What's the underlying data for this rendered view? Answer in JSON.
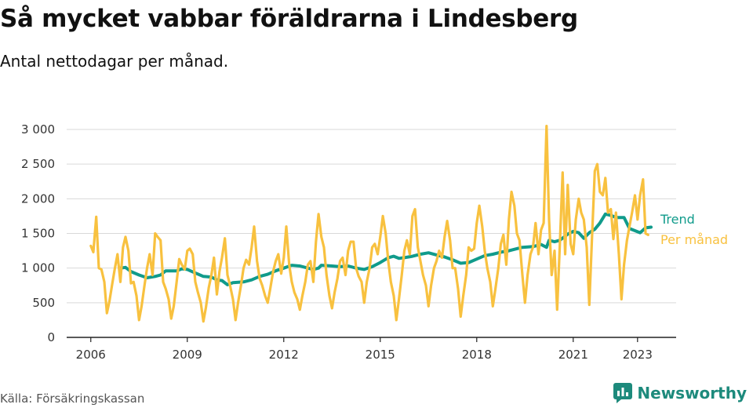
{
  "title": "Så mycket vabbar föräldrarna i Lindesberg",
  "subtitle": "Antal nettodagar per månad.",
  "source": "Källa: Försäkringskassan",
  "brand": "Newsworthy",
  "colors": {
    "trend": "#109b8b",
    "monthly": "#f8c13f",
    "grid": "#d9d9d9",
    "brand": "#1d8a7c"
  },
  "chart_data": {
    "type": "line",
    "title": "Så mycket vabbar föräldrarna i Lindesberg",
    "subtitle": "Antal nettodagar per månad.",
    "xlim": [
      2005.25,
      2024.2
    ],
    "ylim": [
      0,
      3000
    ],
    "yticks": [
      0,
      500,
      1000,
      1500,
      2000,
      2500,
      3000
    ],
    "ytick_labels": [
      "0",
      "500",
      "1 000",
      "1 500",
      "2 000",
      "2 500",
      "3 000"
    ],
    "xticks": [
      2006,
      2009,
      2012,
      2015,
      2018,
      2021,
      2023
    ],
    "xtick_labels": [
      "2006",
      "2009",
      "2012",
      "2015",
      "2018",
      "2021",
      "2023"
    ],
    "grid": true,
    "legend": "end-labels right",
    "series": [
      {
        "name": "Per månad",
        "color": "#f8c13f",
        "points": [
          [
            2006.0,
            1320
          ],
          [
            2006.08,
            1230
          ],
          [
            2006.17,
            1740
          ],
          [
            2006.25,
            1000
          ],
          [
            2006.33,
            980
          ],
          [
            2006.42,
            800
          ],
          [
            2006.5,
            350
          ],
          [
            2006.58,
            520
          ],
          [
            2006.67,
            780
          ],
          [
            2006.75,
            1000
          ],
          [
            2006.83,
            1200
          ],
          [
            2006.92,
            800
          ],
          [
            2007.0,
            1300
          ],
          [
            2007.08,
            1450
          ],
          [
            2007.17,
            1250
          ],
          [
            2007.25,
            780
          ],
          [
            2007.33,
            800
          ],
          [
            2007.42,
            600
          ],
          [
            2007.5,
            250
          ],
          [
            2007.58,
            450
          ],
          [
            2007.67,
            750
          ],
          [
            2007.75,
            1000
          ],
          [
            2007.83,
            1200
          ],
          [
            2007.92,
            900
          ],
          [
            2008.0,
            1500
          ],
          [
            2008.08,
            1450
          ],
          [
            2008.17,
            1400
          ],
          [
            2008.25,
            800
          ],
          [
            2008.33,
            700
          ],
          [
            2008.42,
            550
          ],
          [
            2008.5,
            270
          ],
          [
            2008.58,
            450
          ],
          [
            2008.67,
            800
          ],
          [
            2008.75,
            1130
          ],
          [
            2008.83,
            1050
          ],
          [
            2008.92,
            980
          ],
          [
            2009.0,
            1250
          ],
          [
            2009.08,
            1280
          ],
          [
            2009.17,
            1200
          ],
          [
            2009.25,
            800
          ],
          [
            2009.33,
            650
          ],
          [
            2009.42,
            500
          ],
          [
            2009.5,
            230
          ],
          [
            2009.58,
            430
          ],
          [
            2009.67,
            720
          ],
          [
            2009.75,
            900
          ],
          [
            2009.83,
            1150
          ],
          [
            2009.92,
            620
          ],
          [
            2010.0,
            950
          ],
          [
            2010.08,
            1150
          ],
          [
            2010.17,
            1430
          ],
          [
            2010.25,
            900
          ],
          [
            2010.33,
            750
          ],
          [
            2010.42,
            550
          ],
          [
            2010.5,
            250
          ],
          [
            2010.58,
            500
          ],
          [
            2010.67,
            750
          ],
          [
            2010.75,
            1000
          ],
          [
            2010.83,
            1120
          ],
          [
            2010.92,
            1050
          ],
          [
            2011.0,
            1300
          ],
          [
            2011.08,
            1600
          ],
          [
            2011.17,
            1100
          ],
          [
            2011.25,
            850
          ],
          [
            2011.33,
            750
          ],
          [
            2011.42,
            600
          ],
          [
            2011.5,
            500
          ],
          [
            2011.58,
            700
          ],
          [
            2011.67,
            950
          ],
          [
            2011.75,
            1100
          ],
          [
            2011.83,
            1200
          ],
          [
            2011.92,
            920
          ],
          [
            2012.0,
            1150
          ],
          [
            2012.08,
            1600
          ],
          [
            2012.17,
            1050
          ],
          [
            2012.25,
            800
          ],
          [
            2012.33,
            650
          ],
          [
            2012.42,
            550
          ],
          [
            2012.5,
            400
          ],
          [
            2012.58,
            600
          ],
          [
            2012.67,
            800
          ],
          [
            2012.75,
            1050
          ],
          [
            2012.83,
            1100
          ],
          [
            2012.92,
            800
          ],
          [
            2013.0,
            1380
          ],
          [
            2013.08,
            1780
          ],
          [
            2013.17,
            1450
          ],
          [
            2013.25,
            1300
          ],
          [
            2013.33,
            900
          ],
          [
            2013.42,
            600
          ],
          [
            2013.5,
            420
          ],
          [
            2013.58,
            650
          ],
          [
            2013.67,
            850
          ],
          [
            2013.75,
            1100
          ],
          [
            2013.83,
            1150
          ],
          [
            2013.92,
            900
          ],
          [
            2014.0,
            1250
          ],
          [
            2014.08,
            1380
          ],
          [
            2014.17,
            1380
          ],
          [
            2014.25,
            1000
          ],
          [
            2014.33,
            880
          ],
          [
            2014.42,
            800
          ],
          [
            2014.5,
            500
          ],
          [
            2014.58,
            800
          ],
          [
            2014.67,
            1000
          ],
          [
            2014.75,
            1300
          ],
          [
            2014.83,
            1350
          ],
          [
            2014.92,
            1200
          ],
          [
            2015.0,
            1450
          ],
          [
            2015.08,
            1750
          ],
          [
            2015.17,
            1500
          ],
          [
            2015.25,
            1100
          ],
          [
            2015.33,
            800
          ],
          [
            2015.42,
            600
          ],
          [
            2015.5,
            250
          ],
          [
            2015.58,
            550
          ],
          [
            2015.67,
            900
          ],
          [
            2015.75,
            1250
          ],
          [
            2015.83,
            1400
          ],
          [
            2015.92,
            1200
          ],
          [
            2016.0,
            1750
          ],
          [
            2016.08,
            1850
          ],
          [
            2016.17,
            1300
          ],
          [
            2016.25,
            1100
          ],
          [
            2016.33,
            900
          ],
          [
            2016.42,
            750
          ],
          [
            2016.5,
            450
          ],
          [
            2016.58,
            750
          ],
          [
            2016.67,
            1000
          ],
          [
            2016.75,
            1100
          ],
          [
            2016.83,
            1250
          ],
          [
            2016.92,
            1150
          ],
          [
            2017.0,
            1450
          ],
          [
            2017.08,
            1680
          ],
          [
            2017.17,
            1400
          ],
          [
            2017.25,
            1000
          ],
          [
            2017.33,
            1000
          ],
          [
            2017.42,
            700
          ],
          [
            2017.5,
            300
          ],
          [
            2017.58,
            600
          ],
          [
            2017.67,
            900
          ],
          [
            2017.75,
            1300
          ],
          [
            2017.83,
            1250
          ],
          [
            2017.92,
            1280
          ],
          [
            2018.0,
            1650
          ],
          [
            2018.08,
            1900
          ],
          [
            2018.17,
            1600
          ],
          [
            2018.25,
            1250
          ],
          [
            2018.33,
            1000
          ],
          [
            2018.42,
            800
          ],
          [
            2018.5,
            450
          ],
          [
            2018.58,
            700
          ],
          [
            2018.67,
            1000
          ],
          [
            2018.75,
            1350
          ],
          [
            2018.83,
            1480
          ],
          [
            2018.92,
            1050
          ],
          [
            2019.0,
            1700
          ],
          [
            2019.08,
            2100
          ],
          [
            2019.17,
            1900
          ],
          [
            2019.25,
            1500
          ],
          [
            2019.33,
            1400
          ],
          [
            2019.42,
            900
          ],
          [
            2019.5,
            500
          ],
          [
            2019.58,
            900
          ],
          [
            2019.67,
            1200
          ],
          [
            2019.75,
            1300
          ],
          [
            2019.83,
            1650
          ],
          [
            2019.92,
            1200
          ],
          [
            2020.0,
            1550
          ],
          [
            2020.08,
            1650
          ],
          [
            2020.17,
            3050
          ],
          [
            2020.25,
            1700
          ],
          [
            2020.33,
            900
          ],
          [
            2020.42,
            1250
          ],
          [
            2020.5,
            400
          ],
          [
            2020.58,
            1300
          ],
          [
            2020.67,
            2380
          ],
          [
            2020.75,
            1200
          ],
          [
            2020.83,
            2200
          ],
          [
            2020.92,
            1350
          ],
          [
            2021.0,
            1200
          ],
          [
            2021.08,
            1700
          ],
          [
            2021.17,
            2000
          ],
          [
            2021.25,
            1800
          ],
          [
            2021.33,
            1700
          ],
          [
            2021.42,
            1300
          ],
          [
            2021.5,
            470
          ],
          [
            2021.58,
            1400
          ],
          [
            2021.67,
            2400
          ],
          [
            2021.75,
            2500
          ],
          [
            2021.83,
            2100
          ],
          [
            2021.92,
            2050
          ],
          [
            2022.0,
            2300
          ],
          [
            2022.08,
            1800
          ],
          [
            2022.17,
            1850
          ],
          [
            2022.25,
            1420
          ],
          [
            2022.33,
            1800
          ],
          [
            2022.42,
            1200
          ],
          [
            2022.5,
            550
          ],
          [
            2022.58,
            1050
          ],
          [
            2022.67,
            1400
          ],
          [
            2022.75,
            1600
          ],
          [
            2022.83,
            1800
          ],
          [
            2022.92,
            2050
          ],
          [
            2023.0,
            1700
          ],
          [
            2023.08,
            2050
          ],
          [
            2023.17,
            2280
          ],
          [
            2023.25,
            1500
          ],
          [
            2023.33,
            1480
          ]
        ]
      },
      {
        "name": "Trend",
        "color": "#109b8b",
        "points": [
          [
            2006.92,
            1000
          ],
          [
            2007.08,
            1010
          ],
          [
            2007.25,
            950
          ],
          [
            2007.5,
            900
          ],
          [
            2007.75,
            860
          ],
          [
            2008.0,
            880
          ],
          [
            2008.17,
            900
          ],
          [
            2008.33,
            960
          ],
          [
            2008.67,
            960
          ],
          [
            2008.83,
            990
          ],
          [
            2009.0,
            980
          ],
          [
            2009.25,
            930
          ],
          [
            2009.5,
            880
          ],
          [
            2009.75,
            870
          ],
          [
            2009.92,
            830
          ],
          [
            2010.08,
            820
          ],
          [
            2010.25,
            760
          ],
          [
            2010.42,
            790
          ],
          [
            2010.75,
            800
          ],
          [
            2011.0,
            830
          ],
          [
            2011.25,
            880
          ],
          [
            2011.5,
            910
          ],
          [
            2011.75,
            960
          ],
          [
            2012.0,
            1000
          ],
          [
            2012.25,
            1040
          ],
          [
            2012.5,
            1030
          ],
          [
            2012.75,
            1000
          ],
          [
            2012.92,
            980
          ],
          [
            2013.08,
            1000
          ],
          [
            2013.17,
            1040
          ],
          [
            2013.5,
            1030
          ],
          [
            2013.75,
            1020
          ],
          [
            2014.0,
            1030
          ],
          [
            2014.25,
            1000
          ],
          [
            2014.5,
            980
          ],
          [
            2014.75,
            1020
          ],
          [
            2015.0,
            1080
          ],
          [
            2015.25,
            1150
          ],
          [
            2015.42,
            1170
          ],
          [
            2015.58,
            1140
          ],
          [
            2015.75,
            1150
          ],
          [
            2016.0,
            1170
          ],
          [
            2016.25,
            1200
          ],
          [
            2016.5,
            1220
          ],
          [
            2016.75,
            1190
          ],
          [
            2017.0,
            1160
          ],
          [
            2017.25,
            1120
          ],
          [
            2017.5,
            1070
          ],
          [
            2017.75,
            1080
          ],
          [
            2018.0,
            1130
          ],
          [
            2018.25,
            1180
          ],
          [
            2018.5,
            1200
          ],
          [
            2018.75,
            1230
          ],
          [
            2019.0,
            1250
          ],
          [
            2019.25,
            1280
          ],
          [
            2019.42,
            1300
          ],
          [
            2019.75,
            1310
          ],
          [
            2020.0,
            1340
          ],
          [
            2020.17,
            1300
          ],
          [
            2020.25,
            1400
          ],
          [
            2020.42,
            1380
          ],
          [
            2020.58,
            1400
          ],
          [
            2020.83,
            1490
          ],
          [
            2021.0,
            1530
          ],
          [
            2021.17,
            1510
          ],
          [
            2021.33,
            1430
          ],
          [
            2021.5,
            1510
          ],
          [
            2021.67,
            1560
          ],
          [
            2021.83,
            1650
          ],
          [
            2022.0,
            1780
          ],
          [
            2022.17,
            1760
          ],
          [
            2022.33,
            1730
          ],
          [
            2022.58,
            1730
          ],
          [
            2022.75,
            1570
          ],
          [
            2022.92,
            1540
          ],
          [
            2023.08,
            1510
          ],
          [
            2023.25,
            1580
          ],
          [
            2023.42,
            1590
          ]
        ]
      }
    ]
  }
}
